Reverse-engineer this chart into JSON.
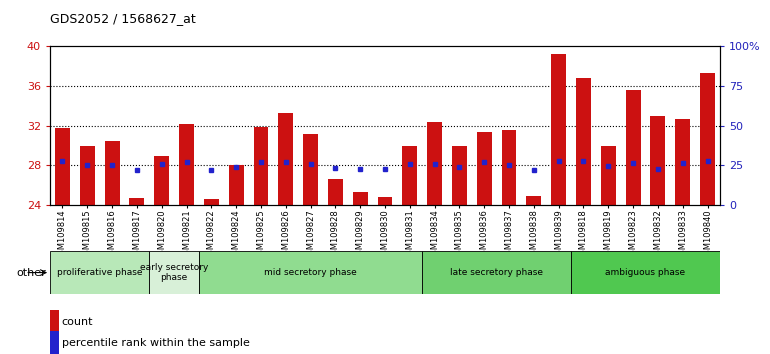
{
  "title": "GDS2052 / 1568627_at",
  "samples": [
    "GSM109814",
    "GSM109815",
    "GSM109816",
    "GSM109817",
    "GSM109820",
    "GSM109821",
    "GSM109822",
    "GSM109824",
    "GSM109825",
    "GSM109826",
    "GSM109827",
    "GSM109828",
    "GSM109829",
    "GSM109830",
    "GSM109831",
    "GSM109834",
    "GSM109835",
    "GSM109836",
    "GSM109837",
    "GSM109838",
    "GSM109839",
    "GSM109818",
    "GSM109819",
    "GSM109823",
    "GSM109832",
    "GSM109833",
    "GSM109840"
  ],
  "counts": [
    31.8,
    30.0,
    30.5,
    24.7,
    29.0,
    32.2,
    24.6,
    28.0,
    31.9,
    33.3,
    31.2,
    26.6,
    25.3,
    24.8,
    30.0,
    32.4,
    30.0,
    31.4,
    31.6,
    24.9,
    39.2,
    36.8,
    30.0,
    35.6,
    33.0,
    32.7,
    37.3
  ],
  "percentile_ranks": [
    28.5,
    28.0,
    28.0,
    27.5,
    28.1,
    28.4,
    27.5,
    27.8,
    28.4,
    28.4,
    28.2,
    27.7,
    27.6,
    27.6,
    28.1,
    28.1,
    27.8,
    28.4,
    28.0,
    27.5,
    28.5,
    28.5,
    27.9,
    28.3,
    27.6,
    28.3,
    28.5
  ],
  "phases": [
    {
      "name": "proliferative phase",
      "start": 0,
      "end": 4,
      "color": "#b8e8b8"
    },
    {
      "name": "early secretory\nphase",
      "start": 4,
      "end": 6,
      "color": "#d8f0d8"
    },
    {
      "name": "mid secretory phase",
      "start": 6,
      "end": 15,
      "color": "#90dc90"
    },
    {
      "name": "late secretory phase",
      "start": 15,
      "end": 21,
      "color": "#70d070"
    },
    {
      "name": "ambiguous phase",
      "start": 21,
      "end": 27,
      "color": "#50c850"
    }
  ],
  "ylim_left": [
    24,
    40
  ],
  "ylim_right": [
    0,
    100
  ],
  "yticks_left": [
    24,
    28,
    32,
    36,
    40
  ],
  "yticks_right": [
    0,
    25,
    50,
    75,
    100
  ],
  "ytick_labels_right": [
    "0",
    "25",
    "50",
    "75",
    "100%"
  ],
  "bar_color": "#cc1111",
  "marker_color": "#2222cc",
  "bar_width": 0.6,
  "bg_color": "#ffffff",
  "axis_label_color": "#cc1111",
  "right_axis_label_color": "#2222bb",
  "legend_count_label": "count",
  "legend_percentile_label": "percentile rank within the sample",
  "other_label": "other",
  "hgrid_vals": [
    28,
    32,
    36
  ]
}
